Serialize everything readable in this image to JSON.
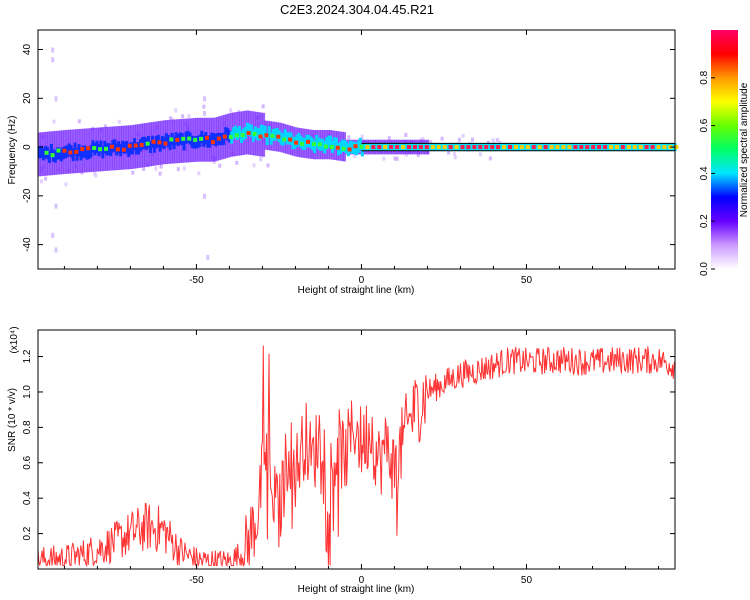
{
  "title": "C2E3.2024.304.04.45.R21",
  "chart_data": [
    {
      "type": "heatmap",
      "xlabel": "Height of straight line (km)",
      "ylabel": "Frequency (Hz)",
      "xlim": [
        -98,
        95
      ],
      "ylim": [
        -50,
        48
      ],
      "x_ticks": [
        -50,
        0,
        50
      ],
      "y_ticks": [
        -40,
        -20,
        0,
        20,
        40
      ],
      "grid": false,
      "colorbar": {
        "label": "Normalized spectral amplitude",
        "range": [
          0,
          1
        ],
        "ticks": [
          "0.0",
          "0.2",
          "0.4",
          "0.6",
          "0.8"
        ],
        "colormap": [
          "#ffffff",
          "#cc99ff",
          "#6600ff",
          "#0000ff",
          "#00e5ff",
          "#00ff66",
          "#66ff00",
          "#ffff00",
          "#ff9900",
          "#ff0000",
          "#ff0066"
        ]
      },
      "peak_track": {
        "x": [
          -98,
          -90,
          -80,
          -70,
          -60,
          -50,
          -45,
          -40,
          -35,
          -30,
          -25,
          -20,
          -15,
          -10,
          -5,
          0,
          10,
          20,
          30,
          40,
          50,
          60,
          70,
          80,
          95
        ],
        "y": [
          -3,
          -2,
          -1,
          0,
          2,
          3,
          3,
          5,
          6,
          5,
          4,
          2,
          1,
          1,
          0,
          0,
          0,
          0,
          0,
          0,
          0,
          0,
          0,
          0,
          0
        ]
      }
    },
    {
      "type": "line",
      "xlabel": "Height of straight line (km)",
      "ylabel": "SNR (10 * v/v)",
      "y_multiplier": "(x10⁴)",
      "xlim": [
        -98,
        95
      ],
      "ylim": [
        0,
        1.35
      ],
      "x_ticks": [
        -50,
        0,
        50
      ],
      "y_ticks": [
        0.2,
        0.4,
        0.6,
        0.8,
        1.0,
        1.2
      ],
      "color": "#ff3333",
      "series": [
        {
          "x": [
            -98,
            -90,
            -85,
            -80,
            -75,
            -70,
            -65,
            -60,
            -55,
            -50,
            -45,
            -40,
            -35,
            -31,
            -29,
            -27,
            -25,
            -22,
            -20,
            -17,
            -15,
            -12,
            -10,
            -7,
            -5,
            -2,
            0,
            3,
            5,
            8,
            10,
            13,
            15,
            18,
            20,
            25,
            30,
            35,
            40,
            45,
            50,
            60,
            70,
            80,
            90,
            95
          ],
          "y": [
            0.05,
            0.06,
            0.08,
            0.11,
            0.15,
            0.2,
            0.24,
            0.22,
            0.1,
            0.05,
            0.04,
            0.04,
            0.1,
            0.35,
            0.7,
            0.45,
            0.3,
            0.7,
            0.55,
            0.75,
            0.6,
            0.8,
            0.5,
            0.7,
            0.62,
            0.82,
            0.7,
            0.8,
            0.6,
            0.7,
            0.55,
            0.75,
            0.85,
            0.95,
            1.0,
            1.05,
            1.1,
            1.12,
            1.15,
            1.18,
            1.17,
            1.18,
            1.17,
            1.18,
            1.18,
            1.15
          ]
        }
      ]
    }
  ]
}
